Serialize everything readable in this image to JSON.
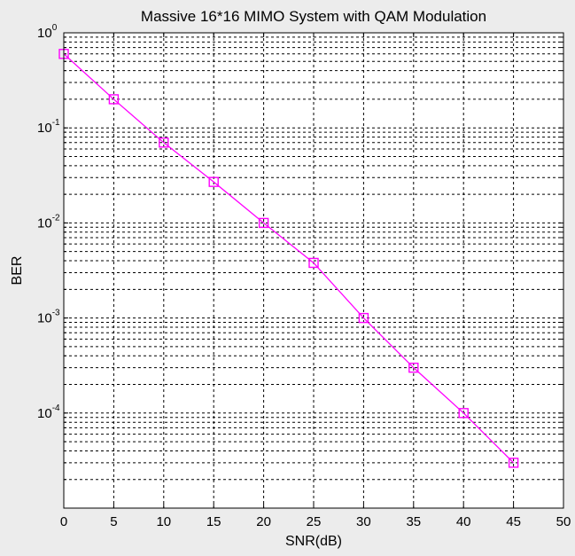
{
  "chart_data": {
    "type": "line",
    "title": "Massive 16*16 MIMO System with QAM Modulation",
    "xlabel": "SNR(dB)",
    "ylabel": "BER",
    "xlim": [
      0,
      50
    ],
    "ylim": [
      1e-05,
      1
    ],
    "y_scale": "log",
    "grid": "on (dashed, major and minor)",
    "x_ticks": [
      0,
      5,
      10,
      15,
      20,
      25,
      30,
      35,
      40,
      45,
      50
    ],
    "y_ticks": [
      {
        "base": "10",
        "exp": "0",
        "value": 1
      },
      {
        "base": "10",
        "exp": "-1",
        "value": 0.1
      },
      {
        "base": "10",
        "exp": "-2",
        "value": 0.01
      },
      {
        "base": "10",
        "exp": "-3",
        "value": 0.001
      },
      {
        "base": "10",
        "exp": "-4",
        "value": 0.0001
      }
    ],
    "series": [
      {
        "color": "#ff00ff",
        "marker": "square",
        "x": [
          0,
          5,
          10,
          15,
          20,
          25,
          30,
          35,
          40,
          45
        ],
        "y": [
          0.6,
          0.2,
          0.07,
          0.027,
          0.01,
          0.0038,
          0.001,
          0.0003,
          0.0001,
          3e-05
        ]
      }
    ]
  }
}
